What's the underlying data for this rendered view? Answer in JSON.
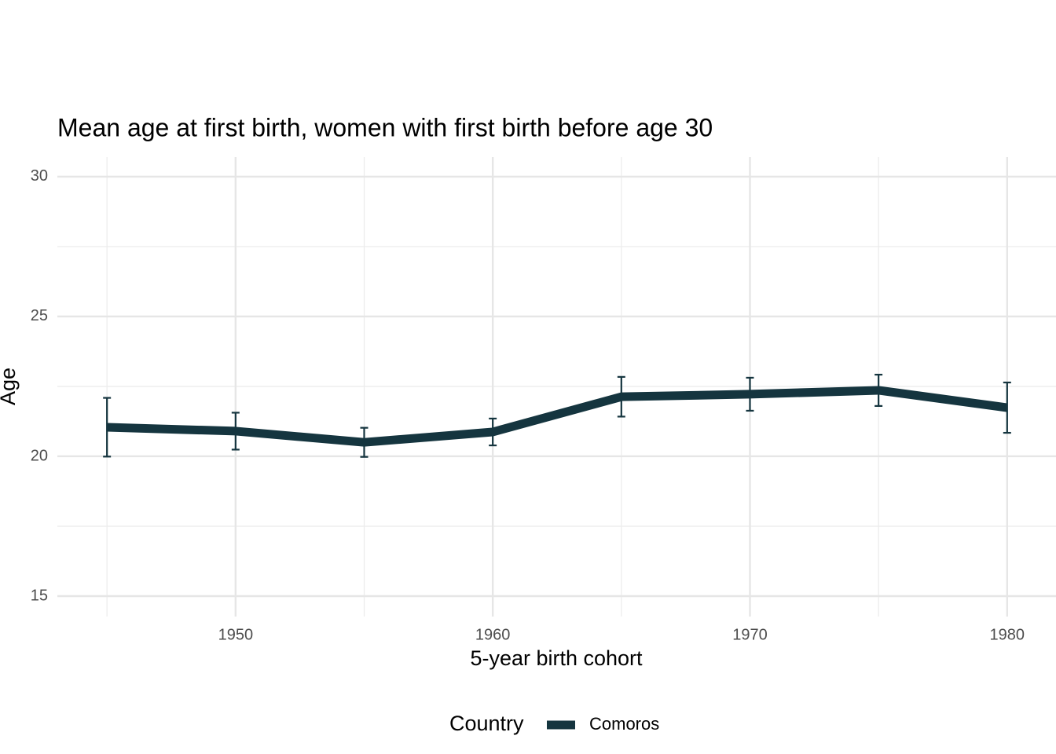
{
  "chart_data": {
    "type": "line",
    "title": "Mean age at first birth, women with first birth before age 30",
    "x_label": "5-year birth cohort",
    "y_label": "Age",
    "legend_title": "Country",
    "x": [
      1945,
      1950,
      1955,
      1960,
      1965,
      1970,
      1975,
      1980
    ],
    "series": [
      {
        "name": "Comoros",
        "color": "#15353f",
        "values": [
          21.04,
          20.9,
          20.5,
          20.87,
          22.13,
          22.22,
          22.36,
          21.74
        ],
        "errors": [
          1.05,
          0.66,
          0.52,
          0.48,
          0.71,
          0.59,
          0.56,
          0.9
        ]
      }
    ],
    "xlim": [
      1943.07,
      1981.9
    ],
    "ylim": [
      14.27,
      30.7
    ],
    "xticks": [
      1950,
      1960,
      1970,
      1980
    ],
    "yticks": [
      15,
      20,
      25,
      30
    ],
    "x_minor_grid": [
      1945,
      1955,
      1965,
      1975
    ],
    "y_minor_grid": [
      17.5,
      22.5,
      27.5
    ],
    "grid": true,
    "legend": "bottom"
  }
}
